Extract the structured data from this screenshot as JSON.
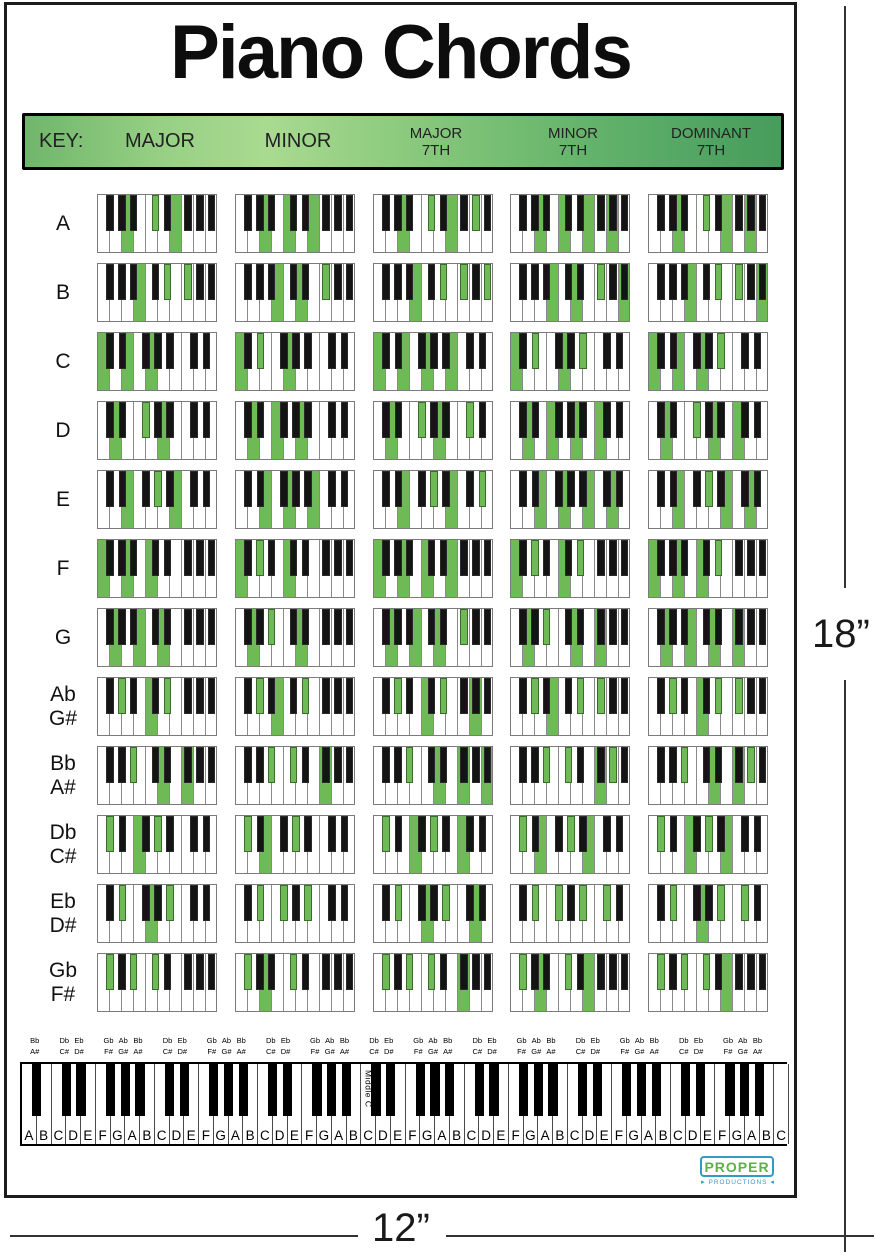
{
  "title": "Piano Chords",
  "legend": {
    "key_label": "KEY:",
    "columns": [
      [
        "MAJOR"
      ],
      [
        "MINOR"
      ],
      [
        "MAJOR",
        "7TH"
      ],
      [
        "MINOR",
        "7TH"
      ],
      [
        "DOMINANT",
        "7TH"
      ]
    ]
  },
  "chord_types": [
    "major",
    "minor",
    "major7",
    "minor7",
    "dom7"
  ],
  "rows": [
    {
      "label": [
        "A"
      ],
      "start": "F",
      "chords": {
        "major": [
          "A1",
          "C#2",
          "E2"
        ],
        "minor": [
          "A1",
          "C2",
          "E2"
        ],
        "major7": [
          "A1",
          "C#2",
          "E2",
          "G#2"
        ],
        "minor7": [
          "A1",
          "C2",
          "E2",
          "G2"
        ],
        "dom7": [
          "A1",
          "C#2",
          "E2",
          "G2"
        ]
      }
    },
    {
      "label": [
        "B"
      ],
      "start": "F",
      "chords": {
        "major": [
          "B1",
          "D#2",
          "F#2"
        ],
        "minor": [
          "B1",
          "D2",
          "F#2"
        ],
        "major7": [
          "B1",
          "D#2",
          "F#2",
          "A#2"
        ],
        "minor7": [
          "B1",
          "D2",
          "F#2",
          "A2"
        ],
        "dom7": [
          "B1",
          "D#2",
          "F#2",
          "A2"
        ]
      }
    },
    {
      "label": [
        "C"
      ],
      "start": "C",
      "chords": {
        "major": [
          "C1",
          "E1",
          "G1"
        ],
        "minor": [
          "C1",
          "D#1",
          "G1"
        ],
        "major7": [
          "C1",
          "E1",
          "G1",
          "B1"
        ],
        "minor7": [
          "C1",
          "D#1",
          "G1",
          "A#1"
        ],
        "dom7": [
          "C1",
          "E1",
          "G1",
          "A#1"
        ]
      }
    },
    {
      "label": [
        "D"
      ],
      "start": "C",
      "chords": {
        "major": [
          "D1",
          "F#1",
          "A1"
        ],
        "minor": [
          "D1",
          "F1",
          "A1"
        ],
        "major7": [
          "D1",
          "F#1",
          "A1",
          "C#2"
        ],
        "minor7": [
          "D1",
          "F1",
          "A1",
          "C2"
        ],
        "dom7": [
          "D1",
          "F#1",
          "A1",
          "C2"
        ]
      }
    },
    {
      "label": [
        "E"
      ],
      "start": "C",
      "chords": {
        "major": [
          "E1",
          "G#1",
          "B1"
        ],
        "minor": [
          "E1",
          "G1",
          "B1"
        ],
        "major7": [
          "E1",
          "G#1",
          "B1",
          "D#2"
        ],
        "minor7": [
          "E1",
          "G1",
          "B1",
          "D2"
        ],
        "dom7": [
          "E1",
          "G#1",
          "B1",
          "D2"
        ]
      }
    },
    {
      "label": [
        "F"
      ],
      "start": "F",
      "chords": {
        "major": [
          "F1",
          "A1",
          "C2"
        ],
        "minor": [
          "F1",
          "G#1",
          "C2"
        ],
        "major7": [
          "F1",
          "A1",
          "C2",
          "E2"
        ],
        "minor7": [
          "F1",
          "G#1",
          "C2",
          "D#2"
        ],
        "dom7": [
          "F1",
          "A1",
          "C2",
          "D#2"
        ]
      }
    },
    {
      "label": [
        "G"
      ],
      "start": "F",
      "chords": {
        "major": [
          "G1",
          "B1",
          "D2"
        ],
        "minor": [
          "G1",
          "A#1",
          "D2"
        ],
        "major7": [
          "G1",
          "B1",
          "D2",
          "F#2"
        ],
        "minor7": [
          "G1",
          "A#1",
          "D2",
          "F2"
        ],
        "dom7": [
          "G1",
          "B1",
          "D2",
          "F2"
        ]
      }
    },
    {
      "label": [
        "Ab",
        "G#"
      ],
      "start": "F",
      "chords": {
        "major": [
          "G#1",
          "C2",
          "D#2"
        ],
        "minor": [
          "G#1",
          "B1",
          "D#2"
        ],
        "major7": [
          "G#1",
          "C2",
          "D#2",
          "G2"
        ],
        "minor7": [
          "G#1",
          "B1",
          "D#2",
          "F#2"
        ],
        "dom7": [
          "G#1",
          "C2",
          "D#2",
          "F#2"
        ]
      }
    },
    {
      "label": [
        "Bb",
        "A#"
      ],
      "start": "F",
      "chords": {
        "major": [
          "A#1",
          "D2",
          "F2"
        ],
        "minor": [
          "A#1",
          "C#2",
          "F2"
        ],
        "major7": [
          "A#1",
          "D2",
          "F2",
          "A2"
        ],
        "minor7": [
          "A#1",
          "C#2",
          "F2",
          "G#2"
        ],
        "dom7": [
          "A#1",
          "D2",
          "F2",
          "G#2"
        ]
      }
    },
    {
      "label": [
        "Db",
        "C#"
      ],
      "start": "C",
      "chords": {
        "major": [
          "C#1",
          "F1",
          "G#1"
        ],
        "minor": [
          "C#1",
          "E1",
          "G#1"
        ],
        "major7": [
          "C#1",
          "F1",
          "G#1",
          "C2"
        ],
        "minor7": [
          "C#1",
          "E1",
          "G#1",
          "B1"
        ],
        "dom7": [
          "C#1",
          "F1",
          "G#1",
          "B1"
        ]
      }
    },
    {
      "label": [
        "Eb",
        "D#"
      ],
      "start": "C",
      "chords": {
        "major": [
          "D#1",
          "G1",
          "A#1"
        ],
        "minor": [
          "D#1",
          "F#1",
          "A#1"
        ],
        "major7": [
          "D#1",
          "G1",
          "A#1",
          "D2"
        ],
        "minor7": [
          "D#1",
          "F#1",
          "A#1",
          "C#2"
        ],
        "dom7": [
          "D#1",
          "G1",
          "A#1",
          "C#2"
        ]
      }
    },
    {
      "label": [
        "Gb",
        "F#"
      ],
      "start": "F",
      "chords": {
        "major": [
          "F#1",
          "A#1",
          "C#2"
        ],
        "minor": [
          "F#1",
          "A1",
          "C#2"
        ],
        "major7": [
          "F#1",
          "A#1",
          "C#2",
          "F2"
        ],
        "minor7": [
          "F#1",
          "A1",
          "C#2",
          "E2"
        ],
        "dom7": [
          "F#1",
          "A#1",
          "C#2",
          "E2"
        ]
      }
    }
  ],
  "bottom_keyboard": {
    "white_labels": "ABCDEFGABCDEFGABCDEFGABCDEFGABCDEFGABCDEFGABCDEFGABC",
    "black_labels": {
      "A#": [
        "Bb",
        "A#"
      ],
      "C#": [
        "Db",
        "C#"
      ],
      "D#": [
        "Eb",
        "D#"
      ],
      "F#": [
        "Gb",
        "F#"
      ],
      "G#": [
        "Ab",
        "G#"
      ]
    },
    "middle_c_label": "Middle C",
    "middle_c_white_index": 23
  },
  "logo": {
    "name": "PROPER",
    "subtitle": "PRODUCTIONS"
  },
  "dimensions": {
    "height_label": "18”",
    "width_label": "12”"
  },
  "colors": {
    "highlight_green": "#6eba57",
    "logo_green": "#5cb246",
    "logo_teal": "#2e9cc3"
  }
}
